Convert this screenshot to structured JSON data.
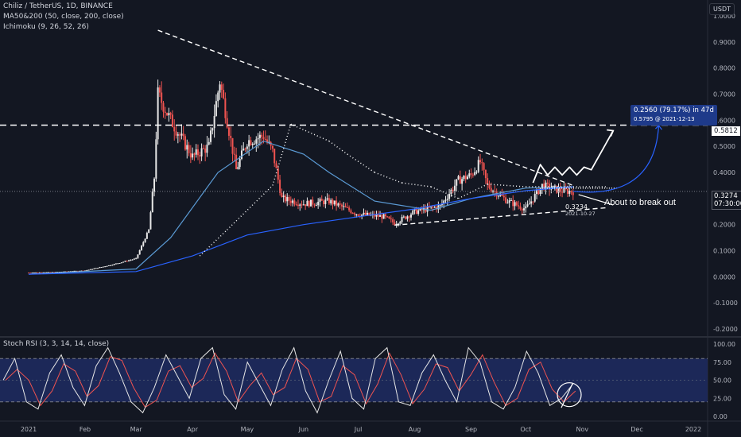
{
  "header": {
    "symbol_line": "Chiliz / TetherUS, 1D, BINANCE",
    "ma_line": "MA50&200 (50, close, 200, close)",
    "ichimoku_line": "Ichimoku (9, 26, 52, 26)",
    "currency": "USDT"
  },
  "rsi_pane": {
    "label": "Stoch RSI (3, 3, 14, 14, close)"
  },
  "annotations": {
    "target_box_line1": "0.2560 (79.17%) in 47d",
    "target_box_line2": "0.5795 @ 2021-12-13",
    "breakout_text": "About to break out",
    "low_value": "0.3234",
    "low_date": "2021-10-27"
  },
  "price_badges": {
    "level_label": "0.5812",
    "current_price": "0.3274",
    "countdown": "07:30:00"
  },
  "colors": {
    "background": "#131722",
    "up": "#e8e8e8",
    "down": "#ef5350",
    "ma50": "#5b9bd5",
    "ma200": "#2962ff",
    "rsi_band": "#1e2a5e",
    "rsi_k": "#e6e6e6",
    "rsi_d": "#ef5350"
  },
  "chart_data": {
    "type": "candlestick",
    "symbol": "CHZUSDT",
    "timeframe": "1D",
    "price_axis": {
      "ylim": [
        -0.2,
        1.0
      ],
      "ticks": [
        "1.0000",
        "0.9000",
        "0.8000",
        "0.7000",
        "0.6000",
        "0.5000",
        "0.4000",
        "0.3000",
        "0.2000",
        "0.1000",
        "0.0000",
        "-0.1000",
        "-0.2000"
      ]
    },
    "time_axis": {
      "labels": [
        "2021",
        "Feb",
        "Mar",
        "Apr",
        "May",
        "Jun",
        "Jul",
        "Aug",
        "Sep",
        "Oct",
        "Nov",
        "Dec",
        "2022"
      ]
    },
    "close_series": [
      {
        "date": "2021-01-01",
        "close": 0.016
      },
      {
        "date": "2021-01-15",
        "close": 0.018
      },
      {
        "date": "2021-02-01",
        "close": 0.024
      },
      {
        "date": "2021-02-15",
        "close": 0.045
      },
      {
        "date": "2021-03-01",
        "close": 0.07
      },
      {
        "date": "2021-03-08",
        "close": 0.18
      },
      {
        "date": "2021-03-11",
        "close": 0.38
      },
      {
        "date": "2021-03-13",
        "close": 0.7
      },
      {
        "date": "2021-03-20",
        "close": 0.6
      },
      {
        "date": "2021-04-01",
        "close": 0.46
      },
      {
        "date": "2021-04-10",
        "close": 0.5
      },
      {
        "date": "2021-04-16",
        "close": 0.75
      },
      {
        "date": "2021-04-25",
        "close": 0.41
      },
      {
        "date": "2021-05-01",
        "close": 0.52
      },
      {
        "date": "2021-05-10",
        "close": 0.54
      },
      {
        "date": "2021-05-15",
        "close": 0.48
      },
      {
        "date": "2021-05-20",
        "close": 0.3
      },
      {
        "date": "2021-06-01",
        "close": 0.28
      },
      {
        "date": "2021-06-15",
        "close": 0.29
      },
      {
        "date": "2021-07-01",
        "close": 0.24
      },
      {
        "date": "2021-07-15",
        "close": 0.23
      },
      {
        "date": "2021-07-21",
        "close": 0.205
      },
      {
        "date": "2021-08-01",
        "close": 0.25
      },
      {
        "date": "2021-08-15",
        "close": 0.27
      },
      {
        "date": "2021-08-25",
        "close": 0.37
      },
      {
        "date": "2021-09-01",
        "close": 0.39
      },
      {
        "date": "2021-09-06",
        "close": 0.44
      },
      {
        "date": "2021-09-10",
        "close": 0.35
      },
      {
        "date": "2021-09-21",
        "close": 0.29
      },
      {
        "date": "2021-10-01",
        "close": 0.26
      },
      {
        "date": "2021-10-10",
        "close": 0.35
      },
      {
        "date": "2021-10-20",
        "close": 0.33
      },
      {
        "date": "2021-10-27",
        "close": 0.3274
      }
    ],
    "moving_averages": [
      {
        "name": "MA50",
        "points": [
          [
            "2021-01-01",
            0.01
          ],
          [
            "2021-03-01",
            0.03
          ],
          [
            "2021-03-20",
            0.15
          ],
          [
            "2021-04-15",
            0.4
          ],
          [
            "2021-05-10",
            0.52
          ],
          [
            "2021-06-01",
            0.47
          ],
          [
            "2021-06-15",
            0.4
          ],
          [
            "2021-07-10",
            0.29
          ],
          [
            "2021-08-10",
            0.255
          ],
          [
            "2021-09-01",
            0.3
          ],
          [
            "2021-10-01",
            0.34
          ],
          [
            "2021-10-27",
            0.345
          ]
        ]
      },
      {
        "name": "MA200",
        "points": [
          [
            "2021-01-01",
            0.01
          ],
          [
            "2021-03-01",
            0.02
          ],
          [
            "2021-04-01",
            0.08
          ],
          [
            "2021-05-01",
            0.16
          ],
          [
            "2021-06-01",
            0.2
          ],
          [
            "2021-07-01",
            0.23
          ],
          [
            "2021-08-01",
            0.26
          ],
          [
            "2021-09-01",
            0.3
          ],
          [
            "2021-10-01",
            0.33
          ],
          [
            "2021-10-27",
            0.345
          ]
        ]
      }
    ],
    "drawings": {
      "resistance_line": [
        [
          "2021-03-13",
          0.945
        ],
        [
          "2021-10-27",
          0.35
        ]
      ],
      "support_line": [
        [
          "2021-07-21",
          0.198
        ],
        [
          "2021-11-15",
          0.265
        ]
      ],
      "horizontal_target": 0.5812,
      "target_price": 0.5795,
      "target_date": "2021-12-13"
    },
    "stoch_rsi": {
      "ylim": [
        0,
        100
      ],
      "ticks": [
        "100.00",
        "75.00",
        "50.00",
        "25.00",
        "0.00"
      ],
      "band": [
        20,
        80
      ],
      "k_values": [
        50,
        80,
        20,
        10,
        60,
        85,
        40,
        15,
        70,
        95,
        60,
        20,
        5,
        40,
        85,
        55,
        25,
        80,
        95,
        30,
        10,
        75,
        45,
        15,
        65,
        95,
        35,
        5,
        50,
        90,
        25,
        10,
        80,
        95,
        20,
        15,
        60,
        85,
        50,
        20,
        95,
        75,
        20,
        10,
        40,
        90,
        60,
        15,
        25,
        45
      ]
    }
  }
}
